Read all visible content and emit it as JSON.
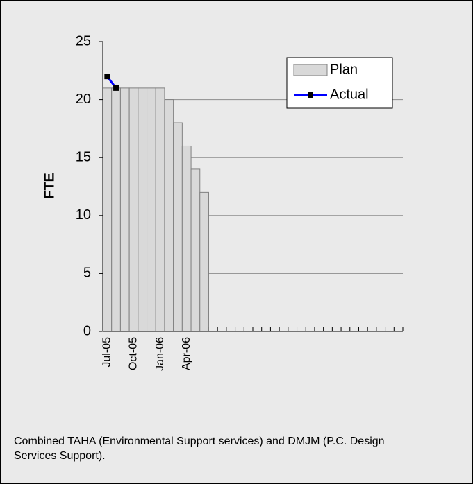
{
  "chart_data": {
    "type": "bar",
    "y_label": "FTE",
    "caption": "Combined TAHA (Environmental Support services) and DMJM (P.C. Design Services Support).",
    "categories": [
      "Jul-05",
      null,
      null,
      "Oct-05",
      null,
      null,
      "Jan-06",
      null,
      null,
      "Apr-06",
      null,
      null,
      null,
      null,
      null,
      null,
      null,
      null,
      null,
      null,
      null,
      null,
      null,
      null,
      null,
      null,
      null,
      null,
      null,
      null,
      null,
      null,
      null,
      null
    ],
    "series": [
      {
        "name": "Plan",
        "type": "bar",
        "color": "#d9d9d9",
        "values": [
          21,
          21,
          21,
          21,
          21,
          21,
          21,
          20,
          18,
          16,
          14,
          12,
          null,
          null,
          null,
          null,
          null,
          null,
          null,
          null,
          null,
          null,
          null,
          null,
          null,
          null,
          null,
          null,
          null,
          null,
          null,
          null,
          null,
          null
        ]
      },
      {
        "name": "Actual",
        "type": "line",
        "color": "#0000ff",
        "values": [
          22,
          21,
          null,
          null,
          null,
          null,
          null,
          null,
          null,
          null,
          null,
          null,
          null,
          null,
          null,
          null,
          null,
          null,
          null,
          null,
          null,
          null,
          null,
          null,
          null,
          null,
          null,
          null,
          null,
          null,
          null,
          null,
          null,
          null
        ]
      }
    ],
    "ylim": [
      0,
      25
    ],
    "yticks": [
      0,
      5,
      10,
      15,
      20,
      25
    ],
    "grid": true,
    "legend": "top-right"
  }
}
